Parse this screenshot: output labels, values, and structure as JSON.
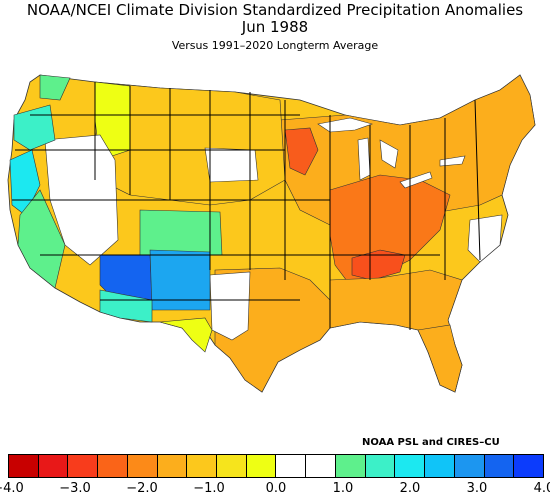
{
  "title_line1": "NOAA/NCEI Climate Division Standardized Precipitation Anomalies",
  "title_line2": "Jun 1988",
  "subtitle": "Versus 1991–2020 Longterm Average",
  "credit": "NOAA PSL and CIRES–CU",
  "colorbar": {
    "colors": [
      "#c80000",
      "#e81818",
      "#f83c1c",
      "#fa6418",
      "#fc8a18",
      "#fcae1c",
      "#fcc81c",
      "#f6e41c",
      "#eeff14",
      "#ffffff",
      "#ffffff",
      "#5ef08c",
      "#3cf0c8",
      "#1ce8f0",
      "#10c4f8",
      "#1c96f0",
      "#1464f0",
      "#0c3cfc"
    ],
    "tick_labels": [
      "−4.0",
      "−3.0",
      "−2.0",
      "−1.0",
      "0.0",
      "1.0",
      "2.0",
      "3.0",
      "4.0"
    ]
  },
  "map": {
    "region": "Contiguous United States climate divisions",
    "legend_colors": {
      "very_dry": "#f85c1c",
      "dry": "#fc8a18",
      "moderately_dry": "#fcae1c",
      "slightly_dry": "#fcc81c",
      "near_dry": "#eeff14",
      "neutral": "#ffffff",
      "slightly_wet": "#5ef08c",
      "wet": "#3cf0c8",
      "wetter": "#10c4f8",
      "very_wet": "#1464f0"
    }
  }
}
